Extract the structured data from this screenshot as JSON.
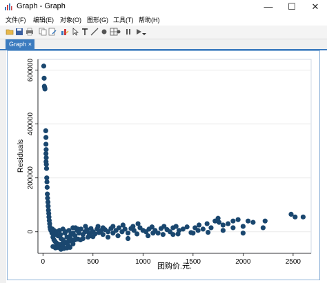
{
  "window": {
    "title": "Graph - Graph"
  },
  "menu": [
    "文件(F)",
    "编辑(E)",
    "对象(O)",
    "图形(G)",
    "工具(T)",
    "帮助(H)"
  ],
  "tab": {
    "label": "Graph",
    "close": "×"
  },
  "controls": {
    "minimize": "—",
    "maximize": "☐",
    "close": "✕"
  },
  "toolbar_icons": [
    "open-icon",
    "save-icon",
    "print-icon",
    "copy-icon",
    "rename-icon",
    "start-editor-icon",
    "pointer-icon",
    "add-text-icon",
    "add-line-icon",
    "add-marker-icon",
    "grid-edit-icon",
    "record-icon",
    "pause-icon",
    "play-icon",
    "play-dropdown-icon"
  ],
  "chart_data": {
    "type": "scatter",
    "title": "",
    "xlabel": "团购价.元.",
    "ylabel": "Residuals",
    "xlim": [
      -50,
      2680
    ],
    "ylim": [
      -80000,
      640000
    ],
    "xticks": [
      0,
      500,
      1000,
      1500,
      2000,
      2500
    ],
    "xtick_labels": [
      "0",
      "500",
      "1000",
      "1500",
      "2000",
      "2500"
    ],
    "yticks": [
      0,
      200000,
      400000,
      600000
    ],
    "ytick_labels": [
      "0",
      "200000",
      "400000",
      "600000"
    ],
    "grid": true,
    "marker_color": "#1a476f",
    "points": [
      [
        8,
        615000
      ],
      [
        12,
        570000
      ],
      [
        14,
        540000
      ],
      [
        18,
        535000
      ],
      [
        20,
        530000
      ],
      [
        28,
        375000
      ],
      [
        30,
        350000
      ],
      [
        30,
        325000
      ],
      [
        32,
        305000
      ],
      [
        30,
        290000
      ],
      [
        33,
        275000
      ],
      [
        31,
        260000
      ],
      [
        34,
        250000
      ],
      [
        36,
        235000
      ],
      [
        38,
        200000
      ],
      [
        40,
        185000
      ],
      [
        42,
        165000
      ],
      [
        44,
        140000
      ],
      [
        46,
        125000
      ],
      [
        50,
        110000
      ],
      [
        52,
        95000
      ],
      [
        55,
        80000
      ],
      [
        58,
        68000
      ],
      [
        60,
        55000
      ],
      [
        63,
        42000
      ],
      [
        67,
        30000
      ],
      [
        70,
        18000
      ],
      [
        74,
        10000
      ],
      [
        80,
        5000
      ],
      [
        90,
        -5000
      ],
      [
        100,
        -20000
      ],
      [
        110,
        -30000
      ],
      [
        120,
        -35000
      ],
      [
        130,
        -40000
      ],
      [
        140,
        -45000
      ],
      [
        150,
        -50000
      ],
      [
        160,
        -52000
      ],
      [
        175,
        -48000
      ],
      [
        190,
        -45000
      ],
      [
        210,
        -42000
      ],
      [
        230,
        -40000
      ],
      [
        260,
        -35000
      ],
      [
        290,
        -32000
      ],
      [
        320,
        -30000
      ],
      [
        350,
        -27000
      ],
      [
        400,
        -25000
      ],
      [
        450,
        -20000
      ],
      [
        500,
        -18000
      ],
      [
        95,
        10000
      ],
      [
        110,
        5000
      ],
      [
        120,
        -10000
      ],
      [
        135,
        0
      ],
      [
        150,
        -15000
      ],
      [
        165,
        5000
      ],
      [
        180,
        -25000
      ],
      [
        200,
        10000
      ],
      [
        220,
        -5000
      ],
      [
        240,
        -20000
      ],
      [
        260,
        5000
      ],
      [
        280,
        -10000
      ],
      [
        300,
        15000
      ],
      [
        320,
        -15000
      ],
      [
        340,
        5000
      ],
      [
        360,
        -5000
      ],
      [
        380,
        10000
      ],
      [
        400,
        -10000
      ],
      [
        420,
        0
      ],
      [
        440,
        8000
      ],
      [
        460,
        -5000
      ],
      [
        480,
        12000
      ],
      [
        500,
        0
      ],
      [
        520,
        -8000
      ],
      [
        540,
        10000
      ],
      [
        560,
        -3000
      ],
      [
        580,
        5000
      ],
      [
        600,
        -10000
      ],
      [
        620,
        8000
      ],
      [
        650,
        0
      ],
      [
        680,
        12000
      ],
      [
        700,
        -5000
      ],
      [
        730,
        5000
      ],
      [
        760,
        15000
      ],
      [
        790,
        0
      ],
      [
        820,
        10000
      ],
      [
        850,
        -5000
      ],
      [
        880,
        12000
      ],
      [
        910,
        5000
      ],
      [
        940,
        -8000
      ],
      [
        970,
        15000
      ],
      [
        1000,
        5000
      ],
      [
        1030,
        0
      ],
      [
        1060,
        10000
      ],
      [
        1090,
        18000
      ],
      [
        1120,
        5000
      ],
      [
        1150,
        -5000
      ],
      [
        1180,
        12000
      ],
      [
        1210,
        20000
      ],
      [
        1240,
        8000
      ],
      [
        1270,
        0
      ],
      [
        1300,
        15000
      ],
      [
        1330,
        20000
      ],
      [
        1360,
        5000
      ],
      [
        1400,
        10000
      ],
      [
        1440,
        18000
      ],
      [
        1480,
        -3000
      ],
      [
        1520,
        15000
      ],
      [
        1560,
        25000
      ],
      [
        1600,
        10000
      ],
      [
        1640,
        30000
      ],
      [
        1680,
        15000
      ],
      [
        1720,
        40000
      ],
      [
        1760,
        35000
      ],
      [
        1800,
        25000
      ],
      [
        1850,
        30000
      ],
      [
        1900,
        15000
      ],
      [
        1950,
        45000
      ],
      [
        2000,
        20000
      ],
      [
        2050,
        40000
      ],
      [
        2100,
        35000
      ],
      [
        2200,
        15000
      ],
      [
        2220,
        40000
      ],
      [
        2480,
        65000
      ],
      [
        2520,
        55000
      ],
      [
        2600,
        55000
      ],
      [
        100,
        -55000
      ],
      [
        125,
        -60000
      ],
      [
        150,
        -58000
      ],
      [
        200,
        -55000
      ],
      [
        250,
        -50000
      ],
      [
        300,
        -45000
      ],
      [
        150,
        -45000
      ],
      [
        200,
        -30000
      ],
      [
        250,
        -20000
      ],
      [
        300,
        -5000
      ],
      [
        350,
        10000
      ],
      [
        175,
        -10000
      ],
      [
        225,
        0
      ],
      [
        275,
        -25000
      ],
      [
        325,
        15000
      ],
      [
        375,
        -30000
      ],
      [
        425,
        20000
      ],
      [
        475,
        -15000
      ],
      [
        550,
        20000
      ],
      [
        600,
        15000
      ],
      [
        650,
        -20000
      ],
      [
        700,
        20000
      ],
      [
        750,
        -15000
      ],
      [
        800,
        25000
      ],
      [
        900,
        20000
      ],
      [
        950,
        30000
      ],
      [
        1100,
        -5000
      ],
      [
        1200,
        -10000
      ],
      [
        1350,
        -8000
      ],
      [
        1500,
        -5000
      ],
      [
        1650,
        -2000
      ],
      [
        1800,
        5000
      ],
      [
        1900,
        40000
      ],
      [
        2000,
        -5000
      ],
      [
        1750,
        50000
      ],
      [
        1550,
        5000
      ],
      [
        1300,
        -10000
      ],
      [
        1050,
        -15000
      ],
      [
        850,
        -25000
      ],
      [
        180,
        -65000
      ],
      [
        210,
        -62000
      ],
      [
        240,
        -60000
      ],
      [
        270,
        -58000
      ]
    ]
  }
}
